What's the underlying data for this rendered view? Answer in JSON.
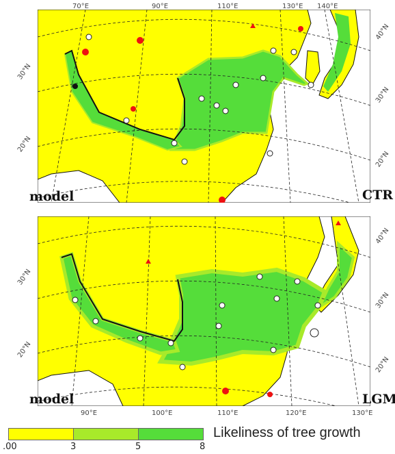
{
  "top_panel": {
    "model_label": "model",
    "scenario_label": "CTR",
    "top_lon_labels": [
      "70°E",
      "90°E",
      "110°E",
      "130°E",
      "140°E"
    ],
    "left_lat_labels": [
      "30°N",
      "20°N"
    ],
    "right_lat_labels": [
      "40°N",
      "30°N",
      "20°N"
    ]
  },
  "bottom_panel": {
    "model_label": "model",
    "scenario_label": "LGM",
    "bottom_lon_labels": [
      "90°E",
      "100°E",
      "110°E",
      "120°E",
      "130°E"
    ],
    "left_lat_labels": [
      "30°N",
      "20°N"
    ],
    "right_lat_labels": [
      "40°N",
      "30°N",
      "20°N"
    ]
  },
  "legend": {
    "title": "Likeliness of tree growth",
    "ticks": [
      ".00",
      "3",
      "5",
      "8"
    ],
    "colors": [
      "#ffff00",
      "#a8ea2a",
      "#55dd3a"
    ]
  },
  "colors": {
    "land_low": "#ffff00",
    "forest": "#55dd3a",
    "forest_edge": "#a8ea2a",
    "sea": "#ffffff",
    "site_red": "#ee1111"
  }
}
